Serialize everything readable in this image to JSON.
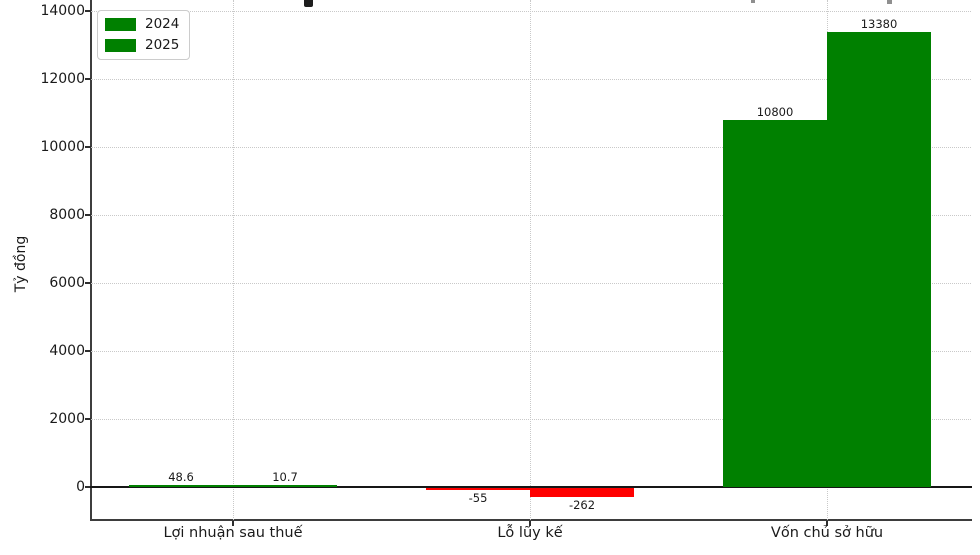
{
  "chart_data": {
    "type": "bar",
    "ylabel": "Tỷ đồng",
    "categories": [
      "Lợi nhuận sau thuế",
      "Lỗ lũy kế",
      "Vốn chủ sở hữu"
    ],
    "series": [
      {
        "name": "2024",
        "values": [
          48.6,
          -55,
          10800
        ],
        "labels": [
          "48.6",
          "-55",
          "10800"
        ]
      },
      {
        "name": "2025",
        "values": [
          10.7,
          -262,
          13380
        ],
        "labels": [
          "10.7",
          "-262",
          "13380"
        ]
      }
    ],
    "colors": {
      "positive": "#008000",
      "negative": "#ff0000"
    },
    "legend": {
      "position": "upper-left",
      "entries": [
        {
          "label": "2024",
          "color": "#008000"
        },
        {
          "label": "2025",
          "color": "#008000"
        }
      ]
    },
    "yticks": [
      0,
      2000,
      4000,
      6000,
      8000,
      10000,
      12000,
      14000
    ],
    "ylim": [
      -600,
      14200
    ],
    "grid": {
      "style": "dotted",
      "color": "#c9c9c9"
    }
  }
}
